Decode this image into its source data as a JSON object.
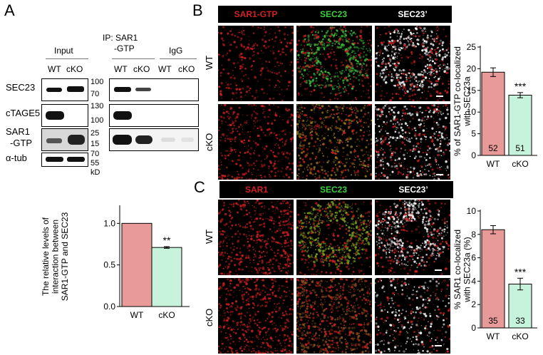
{
  "panel_a": {
    "letter": "A",
    "input_label": "Input",
    "ip_label_line1": "IP: SAR1",
    "ip_label_line2": "-GTP",
    "igg_label": "IgG",
    "lanes": [
      "WT",
      "cKO",
      "WT",
      "cKO",
      "WT",
      "cKO"
    ],
    "rows": [
      {
        "label": "SEC23",
        "markers": [
          "100",
          "70"
        ]
      },
      {
        "label": "cTAGE5",
        "markers": [
          "130",
          "100"
        ]
      },
      {
        "label_line1": "SAR1",
        "label_line2": "-GTP",
        "markers": [
          "25",
          "15"
        ]
      },
      {
        "label": "α-tub",
        "markers": [
          "70",
          "55"
        ],
        "unit": "kD"
      }
    ]
  },
  "panel_b": {
    "letter": "B",
    "headers": [
      "SAR1-GTP",
      "SEC23",
      "SEC23’"
    ],
    "rows": [
      "WT",
      "cKO"
    ]
  },
  "panel_c": {
    "letter": "C",
    "headers": [
      "SAR1",
      "SEC23",
      "SEC23’"
    ],
    "rows": [
      "WT",
      "cKO"
    ]
  },
  "colors": {
    "wt_bar": "#e89a98",
    "cko_bar": "#c7f3dc",
    "red_channel": "#cc1f1f",
    "green_channel": "#3fbf3f",
    "white_channel": "#ffffff"
  },
  "chart_data": [
    {
      "id": "panel-a-chart",
      "type": "bar",
      "categories": [
        "WT",
        "cKO"
      ],
      "values": [
        1.0,
        0.71
      ],
      "errors": [
        0,
        0.01
      ],
      "significance": [
        "",
        "**"
      ],
      "ylabel_lines": [
        "The relative levels of",
        "interaction between",
        "SAR1-GTP and SEC23"
      ],
      "yticks": [
        "0.0",
        "0.5",
        "1.0"
      ],
      "ylim": [
        0,
        1.2
      ]
    },
    {
      "id": "panel-b-chart",
      "type": "bar",
      "categories": [
        "WT",
        "cKO"
      ],
      "values": [
        19.2,
        13.9
      ],
      "errors": [
        1.0,
        0.6
      ],
      "n_labels": [
        "52",
        "51"
      ],
      "significance": [
        "",
        "***"
      ],
      "ylabel_lines": [
        "% of SAR1-GTP co-localized",
        "with SEC23a"
      ],
      "yticks": [
        "0",
        "5",
        "10",
        "15",
        "20",
        "25"
      ],
      "ylim": [
        0,
        25
      ]
    },
    {
      "id": "panel-c-chart",
      "type": "bar",
      "categories": [
        "WT",
        "cKO"
      ],
      "values": [
        8.4,
        3.75
      ],
      "errors": [
        0.35,
        0.5
      ],
      "n_labels": [
        "35",
        "33"
      ],
      "significance": [
        "",
        "***"
      ],
      "ylabel_lines": [
        "% SAR1 co-localized",
        "with SEC23a (%)"
      ],
      "yticks": [
        "0",
        "2",
        "4",
        "6",
        "8",
        "10"
      ],
      "ylim": [
        0,
        10
      ]
    }
  ]
}
